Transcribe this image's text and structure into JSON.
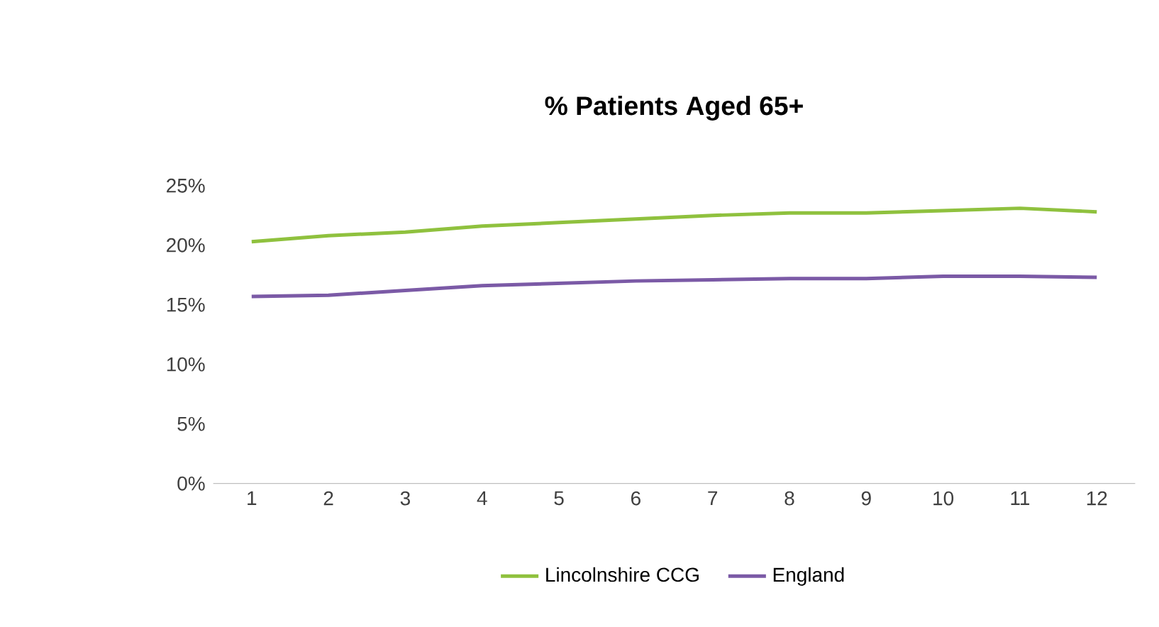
{
  "chart_data": {
    "type": "line",
    "title": "% Patients Aged 65+",
    "categories": [
      "1",
      "2",
      "3",
      "4",
      "5",
      "6",
      "7",
      "8",
      "9",
      "10",
      "11",
      "12"
    ],
    "series": [
      {
        "name": "Lincolnshire CCG",
        "color": "#8fc13e",
        "values": [
          20.3,
          20.8,
          21.1,
          21.6,
          21.9,
          22.2,
          22.5,
          22.7,
          22.7,
          22.9,
          23.1,
          22.8
        ]
      },
      {
        "name": "England",
        "color": "#7b5aa6",
        "values": [
          15.7,
          15.8,
          16.2,
          16.6,
          16.8,
          17.0,
          17.1,
          17.2,
          17.2,
          17.4,
          17.4,
          17.3
        ]
      }
    ],
    "ylim": [
      0,
      25
    ],
    "yticks": [
      {
        "value": 0,
        "label": "0%"
      },
      {
        "value": 5,
        "label": "5%"
      },
      {
        "value": 10,
        "label": "10%"
      },
      {
        "value": 15,
        "label": "15%"
      },
      {
        "value": 20,
        "label": "20%"
      },
      {
        "value": 25,
        "label": "25%"
      }
    ],
    "grid": false,
    "legend": "bottom",
    "marker": "none",
    "line_style": "solid"
  }
}
